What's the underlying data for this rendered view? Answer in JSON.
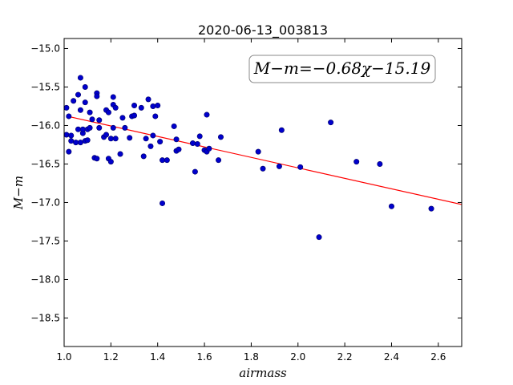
{
  "chart_data": {
    "type": "scatter",
    "title": "2020-06-13_003813",
    "xlabel": "airmass",
    "ylabel": "M−m",
    "xlim": [
      1.0,
      2.7
    ],
    "ylim": [
      -18.87,
      -14.87
    ],
    "y_inverted": true,
    "x_ticks": [
      1.0,
      1.2,
      1.4,
      1.6,
      1.8,
      2.0,
      2.2,
      2.4,
      2.6
    ],
    "x_tick_labels": [
      "1.0",
      "1.2",
      "1.4",
      "1.6",
      "1.8",
      "2.0",
      "2.2",
      "2.4",
      "2.6"
    ],
    "y_ticks": [
      -15.0,
      -15.5,
      -16.0,
      -16.5,
      -17.0,
      -17.5,
      -18.0,
      -18.5
    ],
    "y_tick_labels": [
      "−15.0",
      "−15.5",
      "−16.0",
      "−16.5",
      "−17.0",
      "−17.5",
      "−18.0",
      "−18.5"
    ],
    "grid": false,
    "fit_label": "M−m=−0.68χ−15.19",
    "fit_line": {
      "slope": -0.68,
      "intercept": -15.19,
      "x_range": [
        1.02,
        2.7
      ]
    },
    "colors": {
      "points": "#0000cc",
      "points_edge": "#000066",
      "fit": "#ff0000"
    },
    "points": [
      [
        1.01,
        -15.77
      ],
      [
        1.02,
        -15.88
      ],
      [
        1.01,
        -16.12
      ],
      [
        1.02,
        -16.34
      ],
      [
        1.03,
        -16.13
      ],
      [
        1.03,
        -16.2
      ],
      [
        1.04,
        -15.68
      ],
      [
        1.05,
        -16.22
      ],
      [
        1.06,
        -16.05
      ],
      [
        1.06,
        -15.6
      ],
      [
        1.07,
        -15.38
      ],
      [
        1.07,
        -15.8
      ],
      [
        1.07,
        -16.22
      ],
      [
        1.08,
        -16.1
      ],
      [
        1.08,
        -16.05
      ],
      [
        1.09,
        -15.5
      ],
      [
        1.09,
        -15.7
      ],
      [
        1.09,
        -16.2
      ],
      [
        1.1,
        -16.05
      ],
      [
        1.1,
        -16.19
      ],
      [
        1.11,
        -15.83
      ],
      [
        1.11,
        -16.03
      ],
      [
        1.12,
        -15.92
      ],
      [
        1.13,
        -16.42
      ],
      [
        1.14,
        -16.43
      ],
      [
        1.14,
        -15.58
      ],
      [
        1.14,
        -15.62
      ],
      [
        1.15,
        -15.93
      ],
      [
        1.15,
        -16.03
      ],
      [
        1.17,
        -16.15
      ],
      [
        1.18,
        -15.8
      ],
      [
        1.18,
        -16.12
      ],
      [
        1.19,
        -15.83
      ],
      [
        1.19,
        -16.43
      ],
      [
        1.2,
        -16.47
      ],
      [
        1.2,
        -16.17
      ],
      [
        1.21,
        -15.63
      ],
      [
        1.21,
        -15.73
      ],
      [
        1.21,
        -16.03
      ],
      [
        1.22,
        -15.77
      ],
      [
        1.22,
        -16.17
      ],
      [
        1.24,
        -16.37
      ],
      [
        1.25,
        -15.9
      ],
      [
        1.26,
        -16.03
      ],
      [
        1.28,
        -16.16
      ],
      [
        1.29,
        -15.88
      ],
      [
        1.3,
        -15.74
      ],
      [
        1.3,
        -15.87
      ],
      [
        1.33,
        -15.77
      ],
      [
        1.34,
        -16.4
      ],
      [
        1.35,
        -16.17
      ],
      [
        1.36,
        -15.66
      ],
      [
        1.37,
        -16.27
      ],
      [
        1.38,
        -16.13
      ],
      [
        1.38,
        -15.75
      ],
      [
        1.39,
        -15.88
      ],
      [
        1.4,
        -15.74
      ],
      [
        1.41,
        -16.21
      ],
      [
        1.42,
        -17.01
      ],
      [
        1.42,
        -16.45
      ],
      [
        1.44,
        -16.45
      ],
      [
        1.47,
        -16.01
      ],
      [
        1.48,
        -16.33
      ],
      [
        1.48,
        -16.18
      ],
      [
        1.49,
        -16.31
      ],
      [
        1.55,
        -16.23
      ],
      [
        1.56,
        -16.6
      ],
      [
        1.57,
        -16.24
      ],
      [
        1.58,
        -16.14
      ],
      [
        1.6,
        -16.32
      ],
      [
        1.61,
        -15.86
      ],
      [
        1.61,
        -16.34
      ],
      [
        1.62,
        -16.3
      ],
      [
        1.66,
        -16.45
      ],
      [
        1.67,
        -16.15
      ],
      [
        1.83,
        -16.34
      ],
      [
        1.85,
        -16.56
      ],
      [
        1.92,
        -16.53
      ],
      [
        1.93,
        -16.06
      ],
      [
        2.01,
        -16.54
      ],
      [
        2.09,
        -17.45
      ],
      [
        2.14,
        -15.96
      ],
      [
        2.25,
        -16.47
      ],
      [
        2.35,
        -16.5
      ],
      [
        2.4,
        -17.05
      ],
      [
        2.57,
        -17.08
      ]
    ]
  }
}
